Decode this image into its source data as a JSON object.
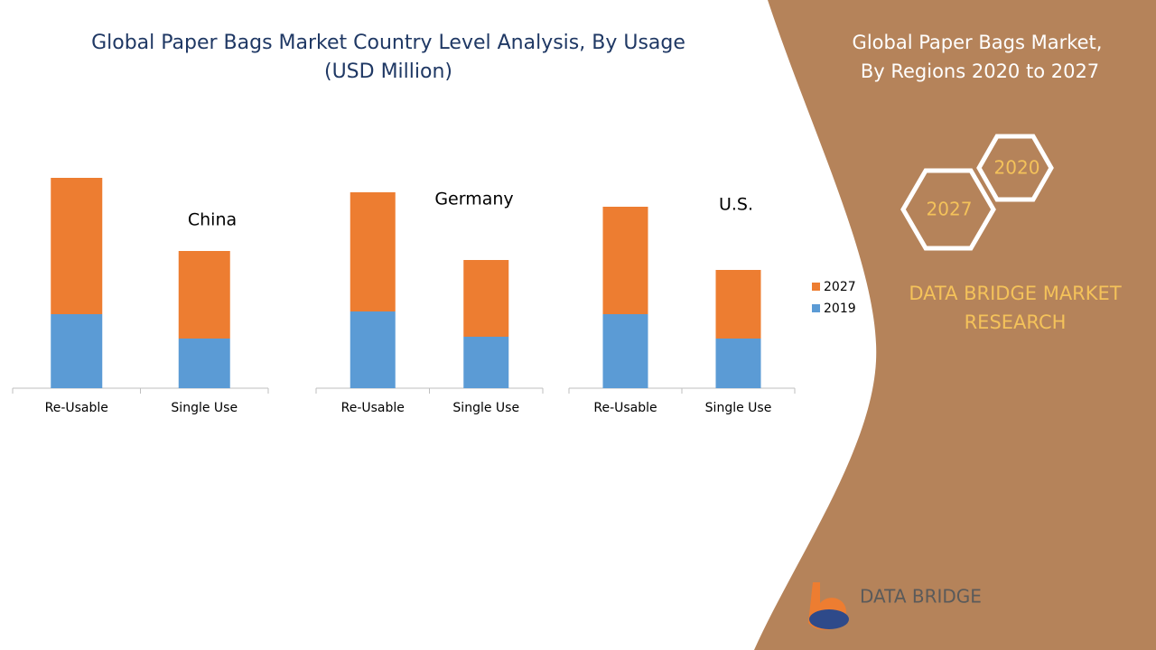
{
  "header": {
    "title": "Global Paper Bags Market Country Level Analysis, By Usage",
    "subtitle": "(USD Million)"
  },
  "chart_data": [
    {
      "type": "bar",
      "stacked": true,
      "title": "China",
      "categories": [
        "Re-Usable",
        "Single Use"
      ],
      "series": [
        {
          "name": "2019",
          "color": "#5b9bd5",
          "values": [
            82,
            55
          ]
        },
        {
          "name": "2027",
          "color": "#ed7d31",
          "values": [
            151,
            97
          ]
        }
      ]
    },
    {
      "type": "bar",
      "stacked": true,
      "title": "Germany",
      "categories": [
        "Re-Usable",
        "Single Use"
      ],
      "series": [
        {
          "color": "#5b9bd5",
          "values": [
            85,
            57
          ]
        },
        {
          "color": "#ed7d31",
          "values": [
            132,
            85
          ]
        }
      ]
    },
    {
      "type": "bar",
      "stacked": true,
      "title": "U.S.",
      "categories": [
        "Re-Usable",
        "Single Use"
      ],
      "series": [
        {
          "color": "#5b9bd5",
          "values": [
            82,
            55
          ]
        },
        {
          "color": "#ed7d31",
          "values": [
            119,
            76
          ]
        }
      ]
    }
  ],
  "panel": {
    "title_line1": "Global Paper Bags  Market,",
    "title_line2": "By Regions 2020 to 2027",
    "hex_a": "2020",
    "hex_b": "2027",
    "brand_line1": "DATA BRIDGE MARKET",
    "brand_line2": "RESEARCH",
    "logo": "DATA BRIDGE"
  }
}
